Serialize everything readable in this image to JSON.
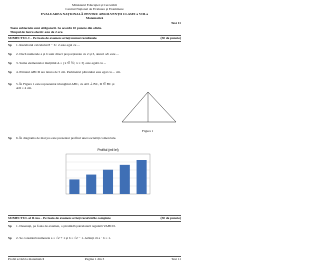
{
  "header": {
    "ministry": "Ministerul Educației și Cercetării",
    "center": "Centrul Național de Evaluare și Examinare",
    "title": "EVALUAREA NAȚIONALĂ PENTRU ABSOLVENȚII CLASEI a VIII-a",
    "subject": "Matematică",
    "test": "Test 11"
  },
  "instructions": [
    "Toate subiectele sunt obligatorii. Se acordă 10 puncte din oficiu.",
    "Timpul de lucru efectiv este de 2 ore."
  ],
  "section1": {
    "heading": "SUBIECTUL I – Pe foaia de examen scrieți numai rezultatele.",
    "points": "(30 de puncte)",
    "items": [
      {
        "points": "5p",
        "text": "1. Rezultatul calculului 8 − 6 : 2 este egal cu ..."
      },
      {
        "points": "5p",
        "text": "2. Dacă numerele a și b sunt direct proporționale cu 2 și 3, atunci a/b este ..."
      },
      {
        "points": "5p",
        "text": "3. Suma elementelor mulțimii A = {x ∈ ℕ | x ≤ 3} este egală cu ..."
      },
      {
        "points": "5p",
        "text": "4. Pătratul ABCD are latura de 5 cm. Perimetrul pătratului este egal cu ... cm."
      },
      {
        "points": "5p",
        "text": "5. În Figura 1 este reprezentat triunghiul ABC, cu AD ⊥ BC, D ∈ BC și AD = 4 cm."
      },
      {
        "points": "5p",
        "text": "6. În diagrama de mai jos este prezentat profitul unei societăți comerciale."
      }
    ],
    "figure_label": "Figura 1",
    "chart": {
      "title": "Profitul (mii lei)",
      "values": [
        3,
        4,
        5,
        6,
        7
      ]
    }
  },
  "section2": {
    "heading": "SUBIECTUL al II-lea – Pe foaia de examen scrieți rezolvările complete.",
    "points": "(30 de puncte)",
    "items": [
      {
        "points": "5p",
        "text": "1. Desenați, pe foaia de examen, o piramidă patrulateră regulată VABCD."
      },
      {
        "points": "5p",
        "text": "2. Se consideră numerele a = √2 + 1 și b = √2 − 1. Arătați că a · b = 1."
      }
    ]
  },
  "footer": {
    "left": "Probă scrisă la matematică",
    "center": "Pagina 1 din 3",
    "right": "Test 11"
  }
}
